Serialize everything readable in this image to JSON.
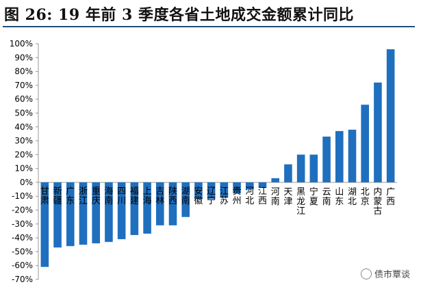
{
  "title": "图 26:  19 年前 3 季度各省土地成交金额累计同比",
  "watermark": "债市覃谈",
  "colors": {
    "bar": "#1f6fbf",
    "axis": "#999999",
    "text": "#000000"
  },
  "chart_data": {
    "type": "bar",
    "categories": [
      "甘肃",
      "新疆",
      "广东",
      "浙江",
      "重庆",
      "海南",
      "四川",
      "福建",
      "上海",
      "吉林",
      "陕西",
      "湖南",
      "安徽",
      "辽宁",
      "江苏",
      "贵州",
      "河北",
      "江西",
      "河南",
      "天津",
      "黑龙江",
      "宁夏",
      "云南",
      "山东",
      "湖北",
      "北京",
      "内蒙古",
      "广西"
    ],
    "values": [
      -61,
      -47,
      -46,
      -45,
      -44,
      -43,
      -41,
      -38,
      -37,
      -31,
      -31,
      -25,
      -12,
      -12,
      -11,
      -8,
      -5,
      -4,
      3,
      13,
      20,
      20,
      33,
      37,
      38,
      56,
      72,
      96
    ],
    "yticks": [
      "100%",
      "90%",
      "80%",
      "70%",
      "60%",
      "50%",
      "40%",
      "30%",
      "20%",
      "10%",
      "0%",
      "-10%",
      "-20%",
      "-30%",
      "-40%",
      "-50%",
      "-60%",
      "-70%"
    ],
    "ylim": [
      -70,
      100
    ],
    "grid": false,
    "title": "",
    "xlabel": "",
    "ylabel": ""
  }
}
